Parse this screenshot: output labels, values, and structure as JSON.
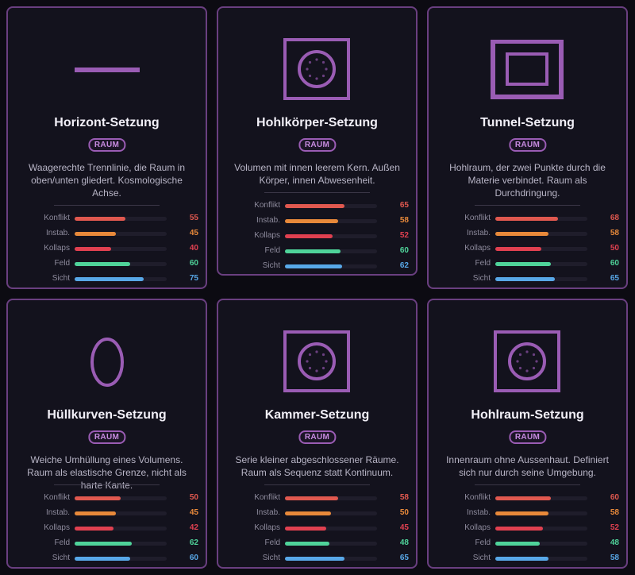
{
  "colors": {
    "Konflikt": "#e0584f",
    "Instab.": "#e8893a",
    "Kollaps": "#e04050",
    "Feld": "#4fd39a",
    "Sicht": "#58a8e8"
  },
  "cards": [
    {
      "icon": "horizontal-line-icon",
      "title": "Horizont-Setzung",
      "badge": "RAUM",
      "desc": "Waagerechte Trennlinie, die Raum in oben/unten gliedert. Kosmologische Achse.",
      "stats": [
        {
          "label": "Konflikt",
          "value": 55
        },
        {
          "label": "Instab.",
          "value": 45
        },
        {
          "label": "Kollaps",
          "value": 40
        },
        {
          "label": "Feld",
          "value": 60
        },
        {
          "label": "Sicht",
          "value": 75
        }
      ]
    },
    {
      "icon": "hollow-body-icon",
      "title": "Hohlkörper-Setzung",
      "badge": "RAUM",
      "desc": "Volumen mit innen leerem Kern. Außen Körper, innen Abwesenheit.",
      "stats": [
        {
          "label": "Konflikt",
          "value": 65
        },
        {
          "label": "Instab.",
          "value": 58
        },
        {
          "label": "Kollaps",
          "value": 52
        },
        {
          "label": "Feld",
          "value": 60
        },
        {
          "label": "Sicht",
          "value": 62
        }
      ]
    },
    {
      "icon": "tunnel-icon",
      "title": "Tunnel-Setzung",
      "badge": "RAUM",
      "desc": "Hohlraum, der zwei Punkte durch die Materie verbindet. Raum als Durchdringung.",
      "stats": [
        {
          "label": "Konflikt",
          "value": 68
        },
        {
          "label": "Instab.",
          "value": 58
        },
        {
          "label": "Kollaps",
          "value": 50
        },
        {
          "label": "Feld",
          "value": 60
        },
        {
          "label": "Sicht",
          "value": 65
        }
      ]
    },
    {
      "icon": "ellipse-hull-icon",
      "title": "Hüllkurven-Setzung",
      "badge": "RAUM",
      "desc": "Weiche Umhüllung eines Volumens. Raum als elastische Grenze, nicht als harte Kante.",
      "stats": [
        {
          "label": "Konflikt",
          "value": 50
        },
        {
          "label": "Instab.",
          "value": 45
        },
        {
          "label": "Kollaps",
          "value": 42
        },
        {
          "label": "Feld",
          "value": 62
        },
        {
          "label": "Sicht",
          "value": 60
        }
      ]
    },
    {
      "icon": "chamber-icon",
      "title": "Kammer-Setzung",
      "badge": "RAUM",
      "desc": "Serie kleiner abgeschlossener Räume. Raum als Sequenz statt Kontinuum.",
      "stats": [
        {
          "label": "Konflikt",
          "value": 58
        },
        {
          "label": "Instab.",
          "value": 50
        },
        {
          "label": "Kollaps",
          "value": 45
        },
        {
          "label": "Feld",
          "value": 48
        },
        {
          "label": "Sicht",
          "value": 65
        }
      ]
    },
    {
      "icon": "cavity-icon",
      "title": "Hohlraum-Setzung",
      "badge": "RAUM",
      "desc": "Innenraum ohne Aussenhaut. Definiert sich nur durch seine Umgebung.",
      "stats": [
        {
          "label": "Konflikt",
          "value": 60
        },
        {
          "label": "Instab.",
          "value": 58
        },
        {
          "label": "Kollaps",
          "value": 52
        },
        {
          "label": "Feld",
          "value": 48
        },
        {
          "label": "Sicht",
          "value": 58
        }
      ]
    }
  ]
}
